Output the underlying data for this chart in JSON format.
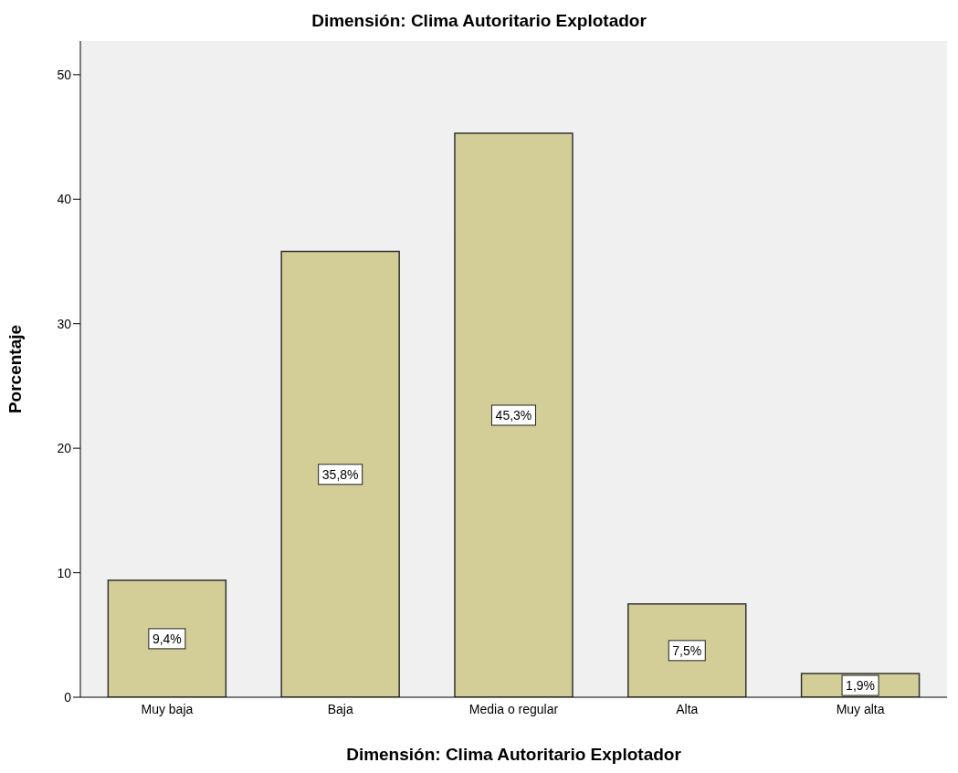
{
  "chart_data": {
    "type": "bar",
    "title": "Dimensión: Clima Autoritario Explotador",
    "xlabel": "Dimensión: Clima Autoritario Explotador",
    "ylabel": "Porcentaje",
    "categories": [
      "Muy baja",
      "Baja",
      "Media o regular",
      "Alta",
      "Muy alta"
    ],
    "values": [
      9.4,
      35.8,
      45.3,
      7.5,
      1.9
    ],
    "value_labels": [
      "9,4%",
      "35,8%",
      "45,3%",
      "7,5%",
      "1,9%"
    ],
    "color": "#d3ce97",
    "ylim": [
      0,
      52.7
    ],
    "yticks": [
      0,
      10,
      20,
      30,
      40,
      50
    ]
  }
}
